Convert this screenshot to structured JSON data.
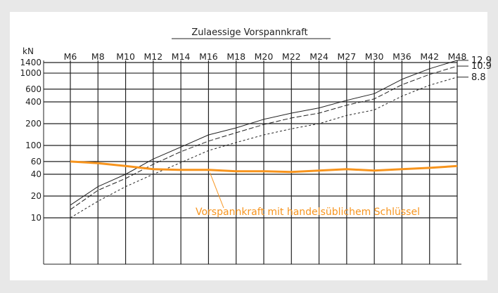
{
  "chart_data": {
    "type": "line",
    "title": "Zulaessige Vorspannkraft",
    "ylabel": "kN",
    "xlabel": "",
    "yscale": "log",
    "grid": true,
    "categories": [
      "M6",
      "M8",
      "M10",
      "M12",
      "M14",
      "M16",
      "M18",
      "M20",
      "M22",
      "M24",
      "M27",
      "M30",
      "M36",
      "M42",
      "M48"
    ],
    "y_ticks": [
      10,
      20,
      40,
      60,
      100,
      200,
      400,
      600,
      1000,
      1400
    ],
    "series": [
      {
        "name": "12.9",
        "style": "solid",
        "color": "#222222",
        "values": [
          15,
          27,
          40,
          65,
          95,
          140,
          175,
          230,
          280,
          330,
          420,
          520,
          820,
          1150,
          1500
        ]
      },
      {
        "name": "10.9",
        "style": "dashed",
        "color": "#222222",
        "values": [
          13,
          24,
          35,
          55,
          82,
          115,
          150,
          195,
          240,
          280,
          360,
          440,
          690,
          960,
          1250
        ]
      },
      {
        "name": "8.8",
        "style": "dotted",
        "color": "#222222",
        "values": [
          10,
          17,
          27,
          40,
          58,
          85,
          110,
          140,
          170,
          200,
          260,
          310,
          480,
          680,
          880
        ]
      },
      {
        "name": "",
        "style": "solid",
        "color": "#f7941d",
        "values": [
          60,
          57,
          52,
          47,
          46,
          46,
          44,
          44,
          43,
          45,
          47,
          45,
          47,
          49,
          52
        ]
      }
    ],
    "annotation": "Vorspannkraft mit handelsüblichem Schlüssel",
    "colors": {
      "background": "#e8e8e8",
      "plot": "#ffffff",
      "ink": "#222222",
      "accent": "#f7941d"
    }
  }
}
